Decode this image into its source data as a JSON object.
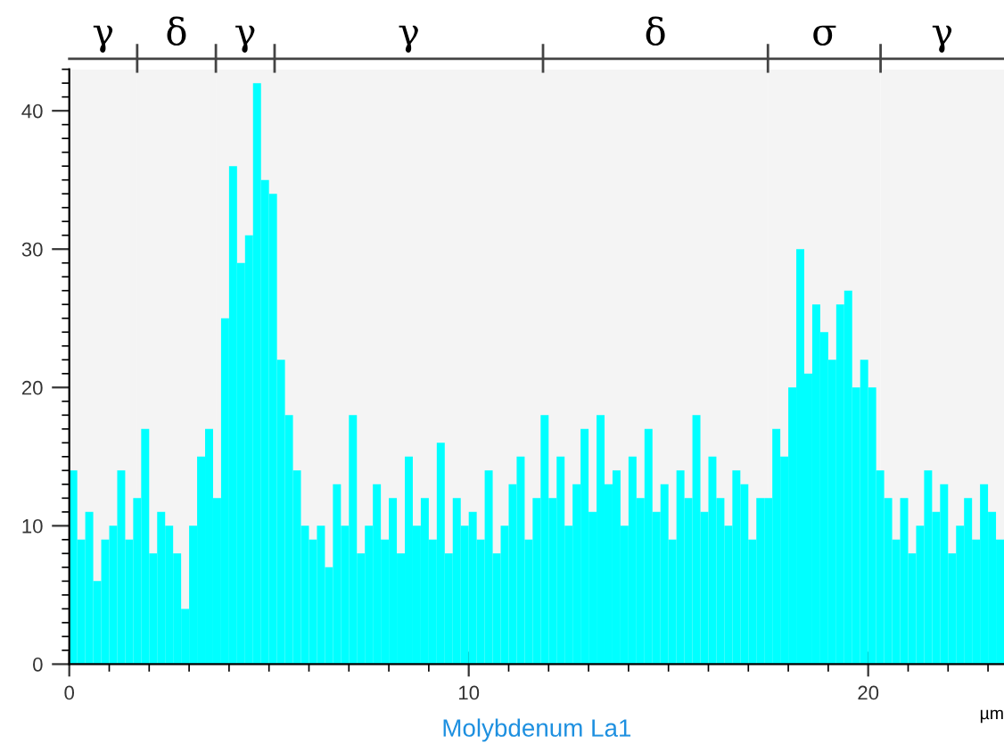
{
  "chart_data": {
    "type": "histogram",
    "xlabel": "Molybdenum La1",
    "annotations": [
      "µm"
    ],
    "color": "#00ffff",
    "bins": [
      0,
      0.2,
      0.4,
      0.6,
      0.8,
      1,
      1.2,
      1.4,
      1.6,
      1.8,
      2,
      2.2,
      2.4,
      2.6,
      2.8,
      3,
      3.2,
      3.4,
      3.6,
      3.8,
      4,
      4.2,
      4.4,
      4.6,
      4.8,
      5,
      5.2,
      5.4,
      5.6,
      5.8,
      6,
      6.2,
      6.4,
      6.6,
      6.8,
      7,
      7.2,
      7.4,
      7.6,
      7.8,
      8,
      8.2,
      8.4,
      8.6,
      8.8,
      9,
      9.2,
      9.4,
      9.6,
      9.8,
      10,
      10.2,
      10.4,
      10.6,
      10.8,
      11,
      11.2,
      11.4,
      11.6,
      11.8,
      12,
      12.2,
      12.4,
      12.6,
      12.8,
      13,
      13.2,
      13.4,
      13.6,
      13.8,
      14,
      14.2,
      14.4,
      14.6,
      14.8,
      15,
      15.2,
      15.4,
      15.6,
      15.8,
      16,
      16.2,
      16.4,
      16.6,
      16.8,
      17,
      17.2,
      17.4,
      17.6,
      17.8,
      18,
      18.2,
      18.4,
      18.6,
      18.8,
      19,
      19.2,
      19.4,
      19.6,
      19.8,
      20,
      20.2,
      20.4,
      20.6,
      20.8,
      21,
      21.2,
      21.4,
      21.6,
      21.8,
      22,
      22.2,
      22.4,
      22.6,
      22.8,
      23,
      23.2,
      23.4
    ],
    "values": [
      14,
      9,
      11,
      6,
      9,
      10,
      14,
      9,
      12,
      17,
      8,
      11,
      10,
      8,
      4,
      10,
      15,
      17,
      12,
      25,
      36,
      29,
      31,
      42,
      35,
      34,
      22,
      18,
      14,
      10,
      9,
      10,
      7,
      13,
      10,
      18,
      8,
      10,
      13,
      9,
      12,
      8,
      15,
      10,
      12,
      9,
      16,
      8,
      12,
      10,
      11,
      9,
      14,
      8,
      10,
      13,
      15,
      9,
      12,
      18,
      12,
      15,
      10,
      13,
      17,
      11,
      18,
      13,
      14,
      10,
      15,
      12,
      17,
      11,
      13,
      9,
      14,
      12,
      18,
      11,
      15,
      12,
      10,
      14,
      13,
      9,
      12,
      12,
      17,
      15,
      20,
      30,
      21,
      26,
      24,
      22,
      26,
      27,
      20,
      22,
      20,
      14,
      12,
      9,
      12,
      8,
      10,
      14,
      11,
      13,
      8,
      10,
      12,
      9,
      13,
      11,
      9
    ],
    "xlim": [
      0,
      23.4
    ],
    "xticks": [
      0,
      10,
      20
    ],
    "ylim": [
      0,
      43
    ],
    "yticks": [
      0,
      10,
      20,
      30,
      40
    ],
    "grid": false,
    "bands": [
      {
        "axis": "x",
        "from": 0,
        "to": 1.7,
        "label": "γ",
        "color": "#f4f4f4"
      },
      {
        "axis": "x",
        "from": 1.7,
        "to": 3.67,
        "label": "δ",
        "color": "#f4f4f4"
      },
      {
        "axis": "x",
        "from": 3.67,
        "to": 5.14,
        "label": "γ",
        "color": "#f4f4f4"
      },
      {
        "axis": "x",
        "from": 5.14,
        "to": 11.86,
        "label": "γ",
        "color": "#f4f4f4"
      },
      {
        "axis": "x",
        "from": 11.86,
        "to": 17.49,
        "label": "δ",
        "color": "#f4f4f4"
      },
      {
        "axis": "x",
        "from": 17.49,
        "to": 20.31,
        "label": "σ",
        "color": "#f4f4f4"
      },
      {
        "axis": "x",
        "from": 20.31,
        "to": 23.4,
        "label": "γ",
        "color": "#f4f4f4"
      }
    ]
  }
}
